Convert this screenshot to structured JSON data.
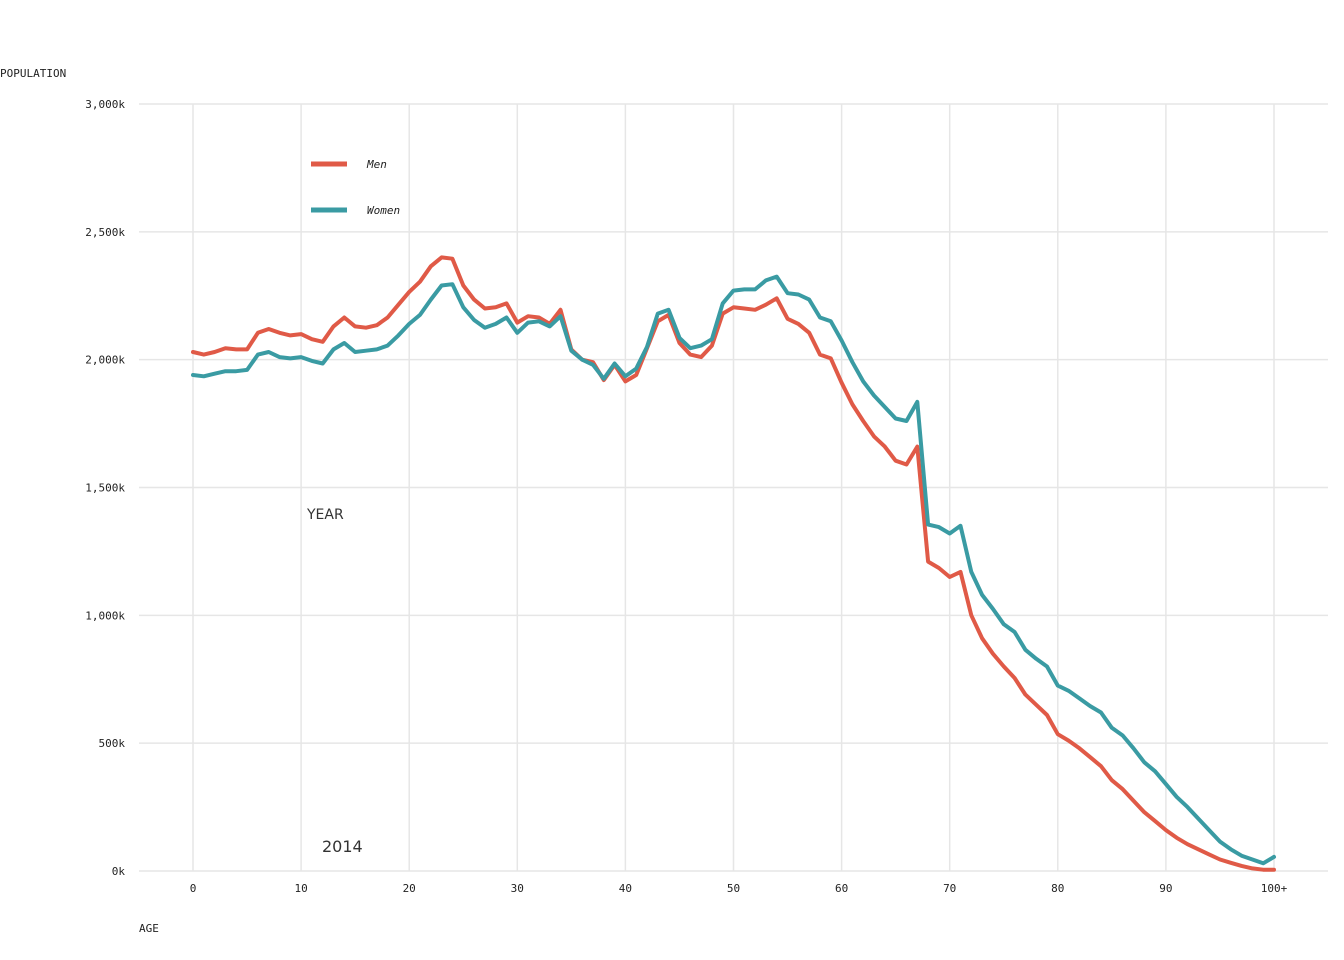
{
  "chart_data": {
    "type": "line",
    "xlabel": "AGE",
    "ylabel": "POPULATION",
    "ylim": [
      0,
      3000000
    ],
    "xlim": [
      0,
      100
    ],
    "x_ticks": [
      {
        "value": 0,
        "label": "0"
      },
      {
        "value": 10,
        "label": "10"
      },
      {
        "value": 20,
        "label": "20"
      },
      {
        "value": 30,
        "label": "30"
      },
      {
        "value": 40,
        "label": "40"
      },
      {
        "value": 50,
        "label": "50"
      },
      {
        "value": 60,
        "label": "60"
      },
      {
        "value": 70,
        "label": "70"
      },
      {
        "value": 80,
        "label": "80"
      },
      {
        "value": 90,
        "label": "90"
      },
      {
        "value": 100,
        "label": "100+"
      }
    ],
    "y_ticks": [
      {
        "value": 0,
        "label": "0k"
      },
      {
        "value": 500000,
        "label": "500k"
      },
      {
        "value": 1000000,
        "label": "1,000k"
      },
      {
        "value": 1500000,
        "label": "1,500k"
      },
      {
        "value": 2000000,
        "label": "2,000k"
      },
      {
        "value": 2500000,
        "label": "2,500k"
      },
      {
        "value": 3000000,
        "label": "3,000k"
      }
    ],
    "grid": true,
    "legend_position": "top-left",
    "year_label": "YEAR",
    "year_value": "2014",
    "series": [
      {
        "name": "Men",
        "color": "#e05a47",
        "values": [
          2030000,
          2020000,
          2030000,
          2045000,
          2040000,
          2040000,
          2105000,
          2120000,
          2105000,
          2095000,
          2100000,
          2080000,
          2070000,
          2130000,
          2165000,
          2130000,
          2125000,
          2135000,
          2165000,
          2215000,
          2265000,
          2305000,
          2365000,
          2400000,
          2395000,
          2290000,
          2235000,
          2200000,
          2205000,
          2220000,
          2145000,
          2170000,
          2165000,
          2140000,
          2195000,
          2040000,
          2000000,
          1990000,
          1920000,
          1980000,
          1915000,
          1940000,
          2045000,
          2150000,
          2175000,
          2065000,
          2020000,
          2010000,
          2055000,
          2180000,
          2205000,
          2200000,
          2195000,
          2215000,
          2240000,
          2160000,
          2140000,
          2105000,
          2020000,
          2005000,
          1910000,
          1825000,
          1760000,
          1700000,
          1660000,
          1605000,
          1590000,
          1660000,
          1210000,
          1185000,
          1150000,
          1170000,
          1000000,
          910000,
          850000,
          800000,
          755000,
          690000,
          650000,
          610000,
          535000,
          510000,
          480000,
          445000,
          410000,
          355000,
          320000,
          275000,
          230000,
          195000,
          160000,
          130000,
          105000,
          85000,
          65000,
          45000,
          32000,
          20000,
          10000,
          5000,
          5000
        ]
      },
      {
        "name": "Women",
        "color": "#3a9ba3",
        "values": [
          1940000,
          1935000,
          1945000,
          1955000,
          1955000,
          1960000,
          2020000,
          2030000,
          2010000,
          2005000,
          2010000,
          1995000,
          1985000,
          2040000,
          2065000,
          2030000,
          2035000,
          2040000,
          2055000,
          2095000,
          2140000,
          2175000,
          2235000,
          2290000,
          2295000,
          2205000,
          2155000,
          2125000,
          2140000,
          2165000,
          2105000,
          2145000,
          2150000,
          2130000,
          2170000,
          2035000,
          2000000,
          1980000,
          1925000,
          1985000,
          1935000,
          1965000,
          2050000,
          2180000,
          2195000,
          2085000,
          2045000,
          2055000,
          2080000,
          2220000,
          2270000,
          2275000,
          2275000,
          2310000,
          2325000,
          2260000,
          2255000,
          2235000,
          2165000,
          2150000,
          2075000,
          1990000,
          1915000,
          1860000,
          1815000,
          1770000,
          1760000,
          1835000,
          1355000,
          1345000,
          1320000,
          1350000,
          1170000,
          1080000,
          1025000,
          965000,
          935000,
          865000,
          830000,
          800000,
          725000,
          705000,
          675000,
          645000,
          620000,
          560000,
          530000,
          480000,
          425000,
          390000,
          340000,
          290000,
          250000,
          205000,
          160000,
          115000,
          85000,
          60000,
          45000,
          30000,
          55000
        ]
      }
    ]
  }
}
